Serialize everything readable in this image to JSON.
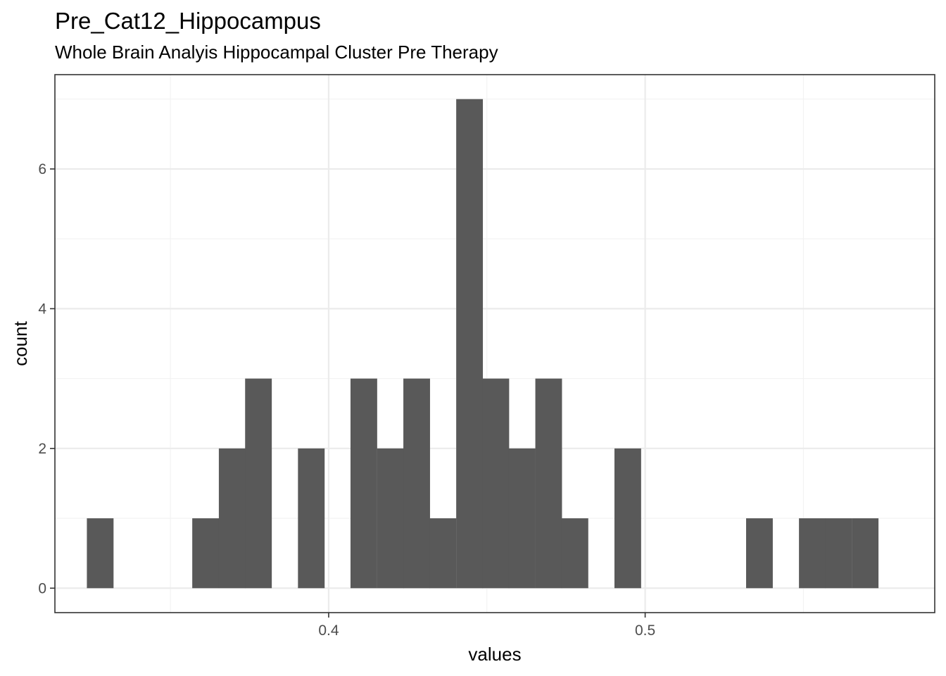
{
  "chart_data": {
    "type": "bar",
    "title": "Pre_Cat12_Hippocampus",
    "subtitle": "Whole Brain Analyis Hippocampal Cluster Pre Therapy",
    "xlabel": "values",
    "ylabel": "count",
    "xlim": [
      0.3135,
      0.5915
    ],
    "ylim": [
      -0.35,
      7.35
    ],
    "x_ticks": [
      {
        "value": 0.4,
        "label": "0.4"
      },
      {
        "value": 0.5,
        "label": "0.5"
      }
    ],
    "x_minor_ticks": [
      0.35,
      0.45,
      0.55
    ],
    "y_ticks": [
      {
        "value": 0,
        "label": "0"
      },
      {
        "value": 2,
        "label": "2"
      },
      {
        "value": 4,
        "label": "4"
      },
      {
        "value": 6,
        "label": "6"
      }
    ],
    "y_minor_ticks": [
      1,
      3,
      5,
      7
    ],
    "bin_width": 0.00834,
    "bins": [
      {
        "x0": 0.3236,
        "count": 1
      },
      {
        "x0": 0.3319,
        "count": 0
      },
      {
        "x0": 0.3403,
        "count": 0
      },
      {
        "x0": 0.3486,
        "count": 0
      },
      {
        "x0": 0.3569,
        "count": 1
      },
      {
        "x0": 0.3653,
        "count": 2
      },
      {
        "x0": 0.3736,
        "count": 3
      },
      {
        "x0": 0.3819,
        "count": 0
      },
      {
        "x0": 0.3903,
        "count": 2
      },
      {
        "x0": 0.3986,
        "count": 0
      },
      {
        "x0": 0.4069,
        "count": 3
      },
      {
        "x0": 0.4153,
        "count": 2
      },
      {
        "x0": 0.4236,
        "count": 3
      },
      {
        "x0": 0.4319,
        "count": 1
      },
      {
        "x0": 0.4403,
        "count": 7
      },
      {
        "x0": 0.4486,
        "count": 3
      },
      {
        "x0": 0.4569,
        "count": 2
      },
      {
        "x0": 0.4653,
        "count": 3
      },
      {
        "x0": 0.4736,
        "count": 1
      },
      {
        "x0": 0.4819,
        "count": 0
      },
      {
        "x0": 0.4903,
        "count": 2
      },
      {
        "x0": 0.4986,
        "count": 0
      },
      {
        "x0": 0.5069,
        "count": 0
      },
      {
        "x0": 0.5153,
        "count": 0
      },
      {
        "x0": 0.5236,
        "count": 0
      },
      {
        "x0": 0.5319,
        "count": 1
      },
      {
        "x0": 0.5403,
        "count": 0
      },
      {
        "x0": 0.5486,
        "count": 1
      },
      {
        "x0": 0.5569,
        "count": 1
      },
      {
        "x0": 0.5653,
        "count": 1
      }
    ],
    "colors": {
      "bar": "#595959",
      "grid_major": "#ebebeb",
      "grid_minor": "#f2f2f2",
      "panel_border": "#333333",
      "background": "#ffffff"
    },
    "grid": true,
    "legend": "none"
  }
}
